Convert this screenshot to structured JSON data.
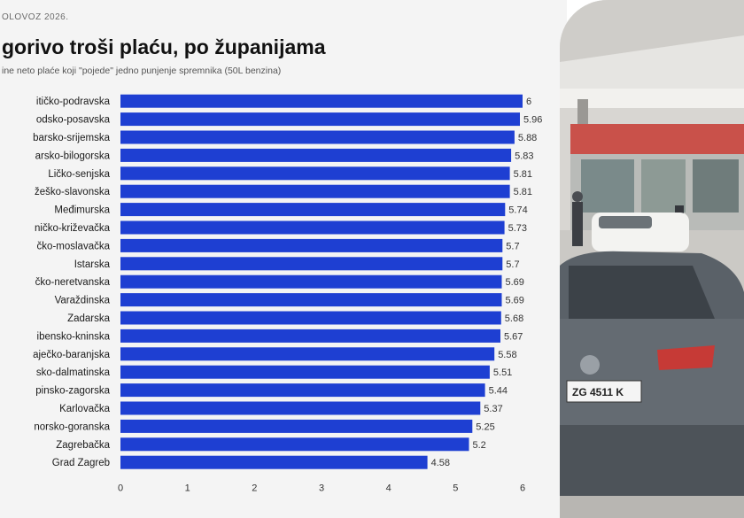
{
  "kicker": "OLOVOZ 2026.",
  "title": "gorivo troši plaću, po županijama",
  "subtitle": "ine neto plaće koji \"pojede\" jedno punjenje spremnika (50L benzina)",
  "footnote": "",
  "chart_data": {
    "type": "bar",
    "orientation": "horizontal",
    "categories": [
      "itičko-podravska",
      "odsko-posavska",
      "barsko-srijemska",
      "arsko-bilogorska",
      "Ličko-senjska",
      "žeško-slavonska",
      "Međimurska",
      "ničko-križevačka",
      "čko-moslavačka",
      "Istarska",
      "čko-neretvanska",
      "Varaždinska",
      "Zadarska",
      "ibensko-kninska",
      "aječko-baranjska",
      "sko-dalmatinska",
      "pinsko-zagorska",
      "Karlovačka",
      "norsko-goranska",
      "Zagrebačka",
      "Grad Zagreb"
    ],
    "values": [
      6,
      5.96,
      5.88,
      5.83,
      5.81,
      5.81,
      5.74,
      5.73,
      5.7,
      5.7,
      5.69,
      5.69,
      5.68,
      5.67,
      5.58,
      5.51,
      5.44,
      5.37,
      5.25,
      5.2,
      4.58
    ],
    "value_labels": [
      "6",
      "5.96",
      "5.88",
      "5.83",
      "5.81",
      "5.81",
      "5.74",
      "5.73",
      "5.7",
      "5.7",
      "5.69",
      "5.69",
      "5.68",
      "5.67",
      "5.58",
      "5.51",
      "5.44",
      "5.37",
      "5.25",
      "5.2",
      "4.58"
    ],
    "xlim": [
      0,
      6
    ],
    "xticks": [
      "0",
      "1",
      "2",
      "3",
      "4",
      "5",
      "6"
    ],
    "bar_color": "#1e3fd2",
    "grid": false
  },
  "photo": {
    "description_icon": "gas-station-photo",
    "plate_text": "ZG 4511 K",
    "colors": {
      "canopy": "#ecebe8",
      "car": "#596067",
      "shop": "#c9514a"
    }
  }
}
